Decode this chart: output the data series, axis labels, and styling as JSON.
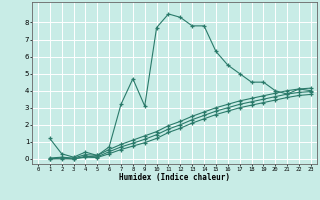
{
  "xlabel": "Humidex (Indice chaleur)",
  "ylabel": "",
  "bg_color": "#c8ece6",
  "grid_color": "#ffffff",
  "line_color": "#2a7a6a",
  "xlim": [
    -0.5,
    23.5
  ],
  "ylim": [
    -0.3,
    9.2
  ],
  "xticks": [
    0,
    1,
    2,
    3,
    4,
    5,
    6,
    7,
    8,
    9,
    10,
    11,
    12,
    13,
    14,
    15,
    16,
    17,
    18,
    19,
    20,
    21,
    22,
    23
  ],
  "yticks": [
    0,
    1,
    2,
    3,
    4,
    5,
    6,
    7,
    8
  ],
  "line1_x": [
    1,
    2,
    3,
    4,
    5,
    6,
    7,
    8,
    9,
    10,
    11,
    12,
    13,
    14,
    15,
    16,
    17,
    18,
    19,
    20,
    21,
    22,
    23
  ],
  "line1_y": [
    1.2,
    0.3,
    0.1,
    0.4,
    0.2,
    0.7,
    3.2,
    4.7,
    3.1,
    7.7,
    8.5,
    8.3,
    7.8,
    7.8,
    6.3,
    5.5,
    5.0,
    4.5,
    4.5,
    4.0,
    3.8,
    4.1,
    4.0
  ],
  "line2_x": [
    1,
    2,
    3,
    4,
    5,
    6,
    7,
    8,
    9,
    10,
    11,
    12,
    13,
    14,
    15,
    16,
    17,
    18,
    19,
    20,
    21,
    22,
    23
  ],
  "line2_y": [
    0.05,
    0.1,
    0.05,
    0.25,
    0.2,
    0.55,
    0.85,
    1.1,
    1.35,
    1.6,
    1.95,
    2.2,
    2.5,
    2.75,
    3.0,
    3.2,
    3.4,
    3.55,
    3.7,
    3.85,
    4.0,
    4.1,
    4.15
  ],
  "line3_x": [
    1,
    2,
    3,
    4,
    5,
    6,
    7,
    8,
    9,
    10,
    11,
    12,
    13,
    14,
    15,
    16,
    17,
    18,
    19,
    20,
    21,
    22,
    23
  ],
  "line3_y": [
    0.0,
    0.05,
    0.0,
    0.15,
    0.12,
    0.42,
    0.7,
    0.92,
    1.15,
    1.42,
    1.75,
    2.0,
    2.3,
    2.55,
    2.8,
    3.0,
    3.2,
    3.35,
    3.5,
    3.65,
    3.8,
    3.9,
    3.95
  ],
  "line4_x": [
    1,
    2,
    3,
    4,
    5,
    6,
    7,
    8,
    9,
    10,
    11,
    12,
    13,
    14,
    15,
    16,
    17,
    18,
    19,
    20,
    21,
    22,
    23
  ],
  "line4_y": [
    0.0,
    0.0,
    0.0,
    0.1,
    0.08,
    0.3,
    0.55,
    0.75,
    0.95,
    1.2,
    1.55,
    1.8,
    2.1,
    2.35,
    2.6,
    2.8,
    3.0,
    3.15,
    3.3,
    3.45,
    3.6,
    3.72,
    3.78
  ]
}
